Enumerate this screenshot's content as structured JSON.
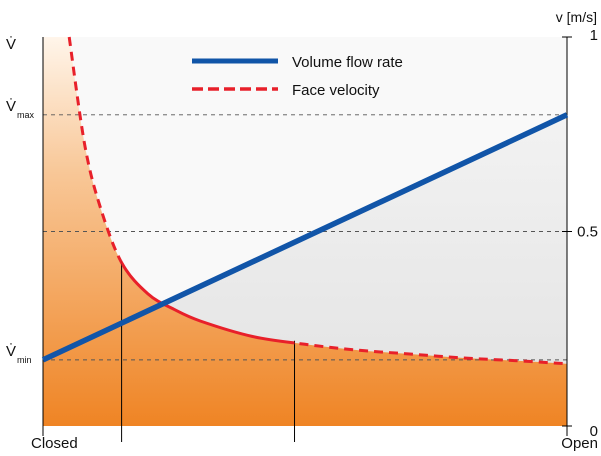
{
  "chart_data": {
    "type": "line",
    "x_categories": [
      "Closed",
      "Open"
    ],
    "y_left_label": "V̇",
    "y_left_ticks": [
      {
        "label": "V̇",
        "sub": "max"
      },
      {
        "label": "V̇",
        "sub": "min"
      }
    ],
    "y_right_label": "v [m/s]",
    "y_right_ticks": [
      "1",
      "0.5",
      "0"
    ],
    "y_right_values": [
      1,
      0.5,
      0
    ],
    "ylim_right": [
      0,
      1
    ],
    "series": [
      {
        "name": "Volume flow rate",
        "color": "#1155a8",
        "style": "solid",
        "x": [
          0,
          1
        ],
        "y_right": [
          0.17,
          0.8
        ]
      },
      {
        "name": "Face velocity",
        "color": "#e8202a",
        "style": "dashed/solid",
        "x": [
          0.05,
          0.08,
          0.11,
          0.15,
          0.2,
          0.25,
          0.3,
          0.4,
          0.5,
          0.6,
          0.7,
          0.8,
          0.9,
          1.0
        ],
        "y_right": [
          1.0,
          0.72,
          0.56,
          0.42,
          0.34,
          0.3,
          0.27,
          0.23,
          0.21,
          0.195,
          0.185,
          0.175,
          0.168,
          0.16
        ]
      }
    ],
    "vertical_markers_x": [
      0.15,
      0.48
    ],
    "legend_position": "top-center",
    "colors": {
      "orange_top": "#fbe4cc",
      "orange_bottom": "#f08a28",
      "gray_fill": "#e6e6e6",
      "grid": "#555555"
    }
  }
}
